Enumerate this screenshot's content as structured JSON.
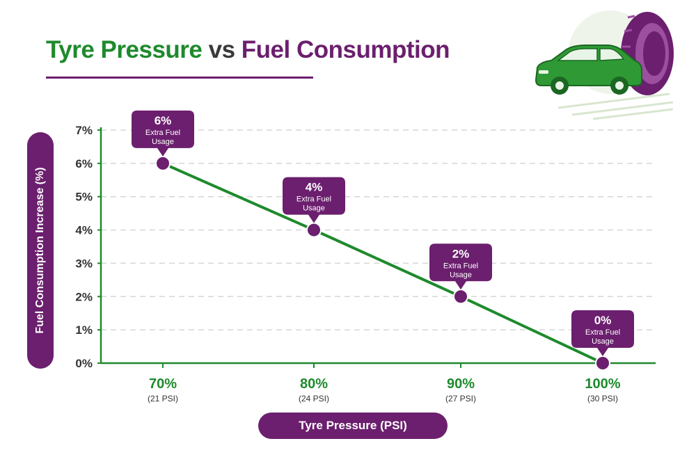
{
  "title": {
    "part1": "Tyre Pressure",
    "part2": "vs",
    "part3": "Fuel Consumption"
  },
  "colors": {
    "green": "#1e8a2c",
    "purple": "#6b1f6e",
    "grid": "#d6d6d6",
    "tick_text": "#333333"
  },
  "illustration": {
    "icon": "car-with-tyre-icon"
  },
  "chart_data": {
    "type": "line",
    "title": "Tyre Pressure vs Fuel Consumption",
    "xlabel": "Tyre Pressure (PSI)",
    "ylabel": "Fuel Consumption Increase (%)",
    "categories": [
      "70%",
      "80%",
      "90%",
      "100%"
    ],
    "category_sublabels": [
      "(21 PSI)",
      "(24 PSI)",
      "(27 PSI)",
      "(30 PSI)"
    ],
    "series": [
      {
        "values": [
          6,
          4,
          2,
          0
        ]
      }
    ],
    "data_labels": [
      {
        "value": "6%",
        "caption": "Extra Fuel Usage"
      },
      {
        "value": "4%",
        "caption": "Extra Fuel Usage"
      },
      {
        "value": "2%",
        "caption": "Extra Fuel Usage"
      },
      {
        "value": "0%",
        "caption": "Extra Fuel Usage"
      }
    ],
    "yticks": [
      "0%",
      "1%",
      "2%",
      "3%",
      "4%",
      "5%",
      "6%",
      "7%"
    ],
    "ylim": [
      0,
      7
    ],
    "grid": true
  }
}
